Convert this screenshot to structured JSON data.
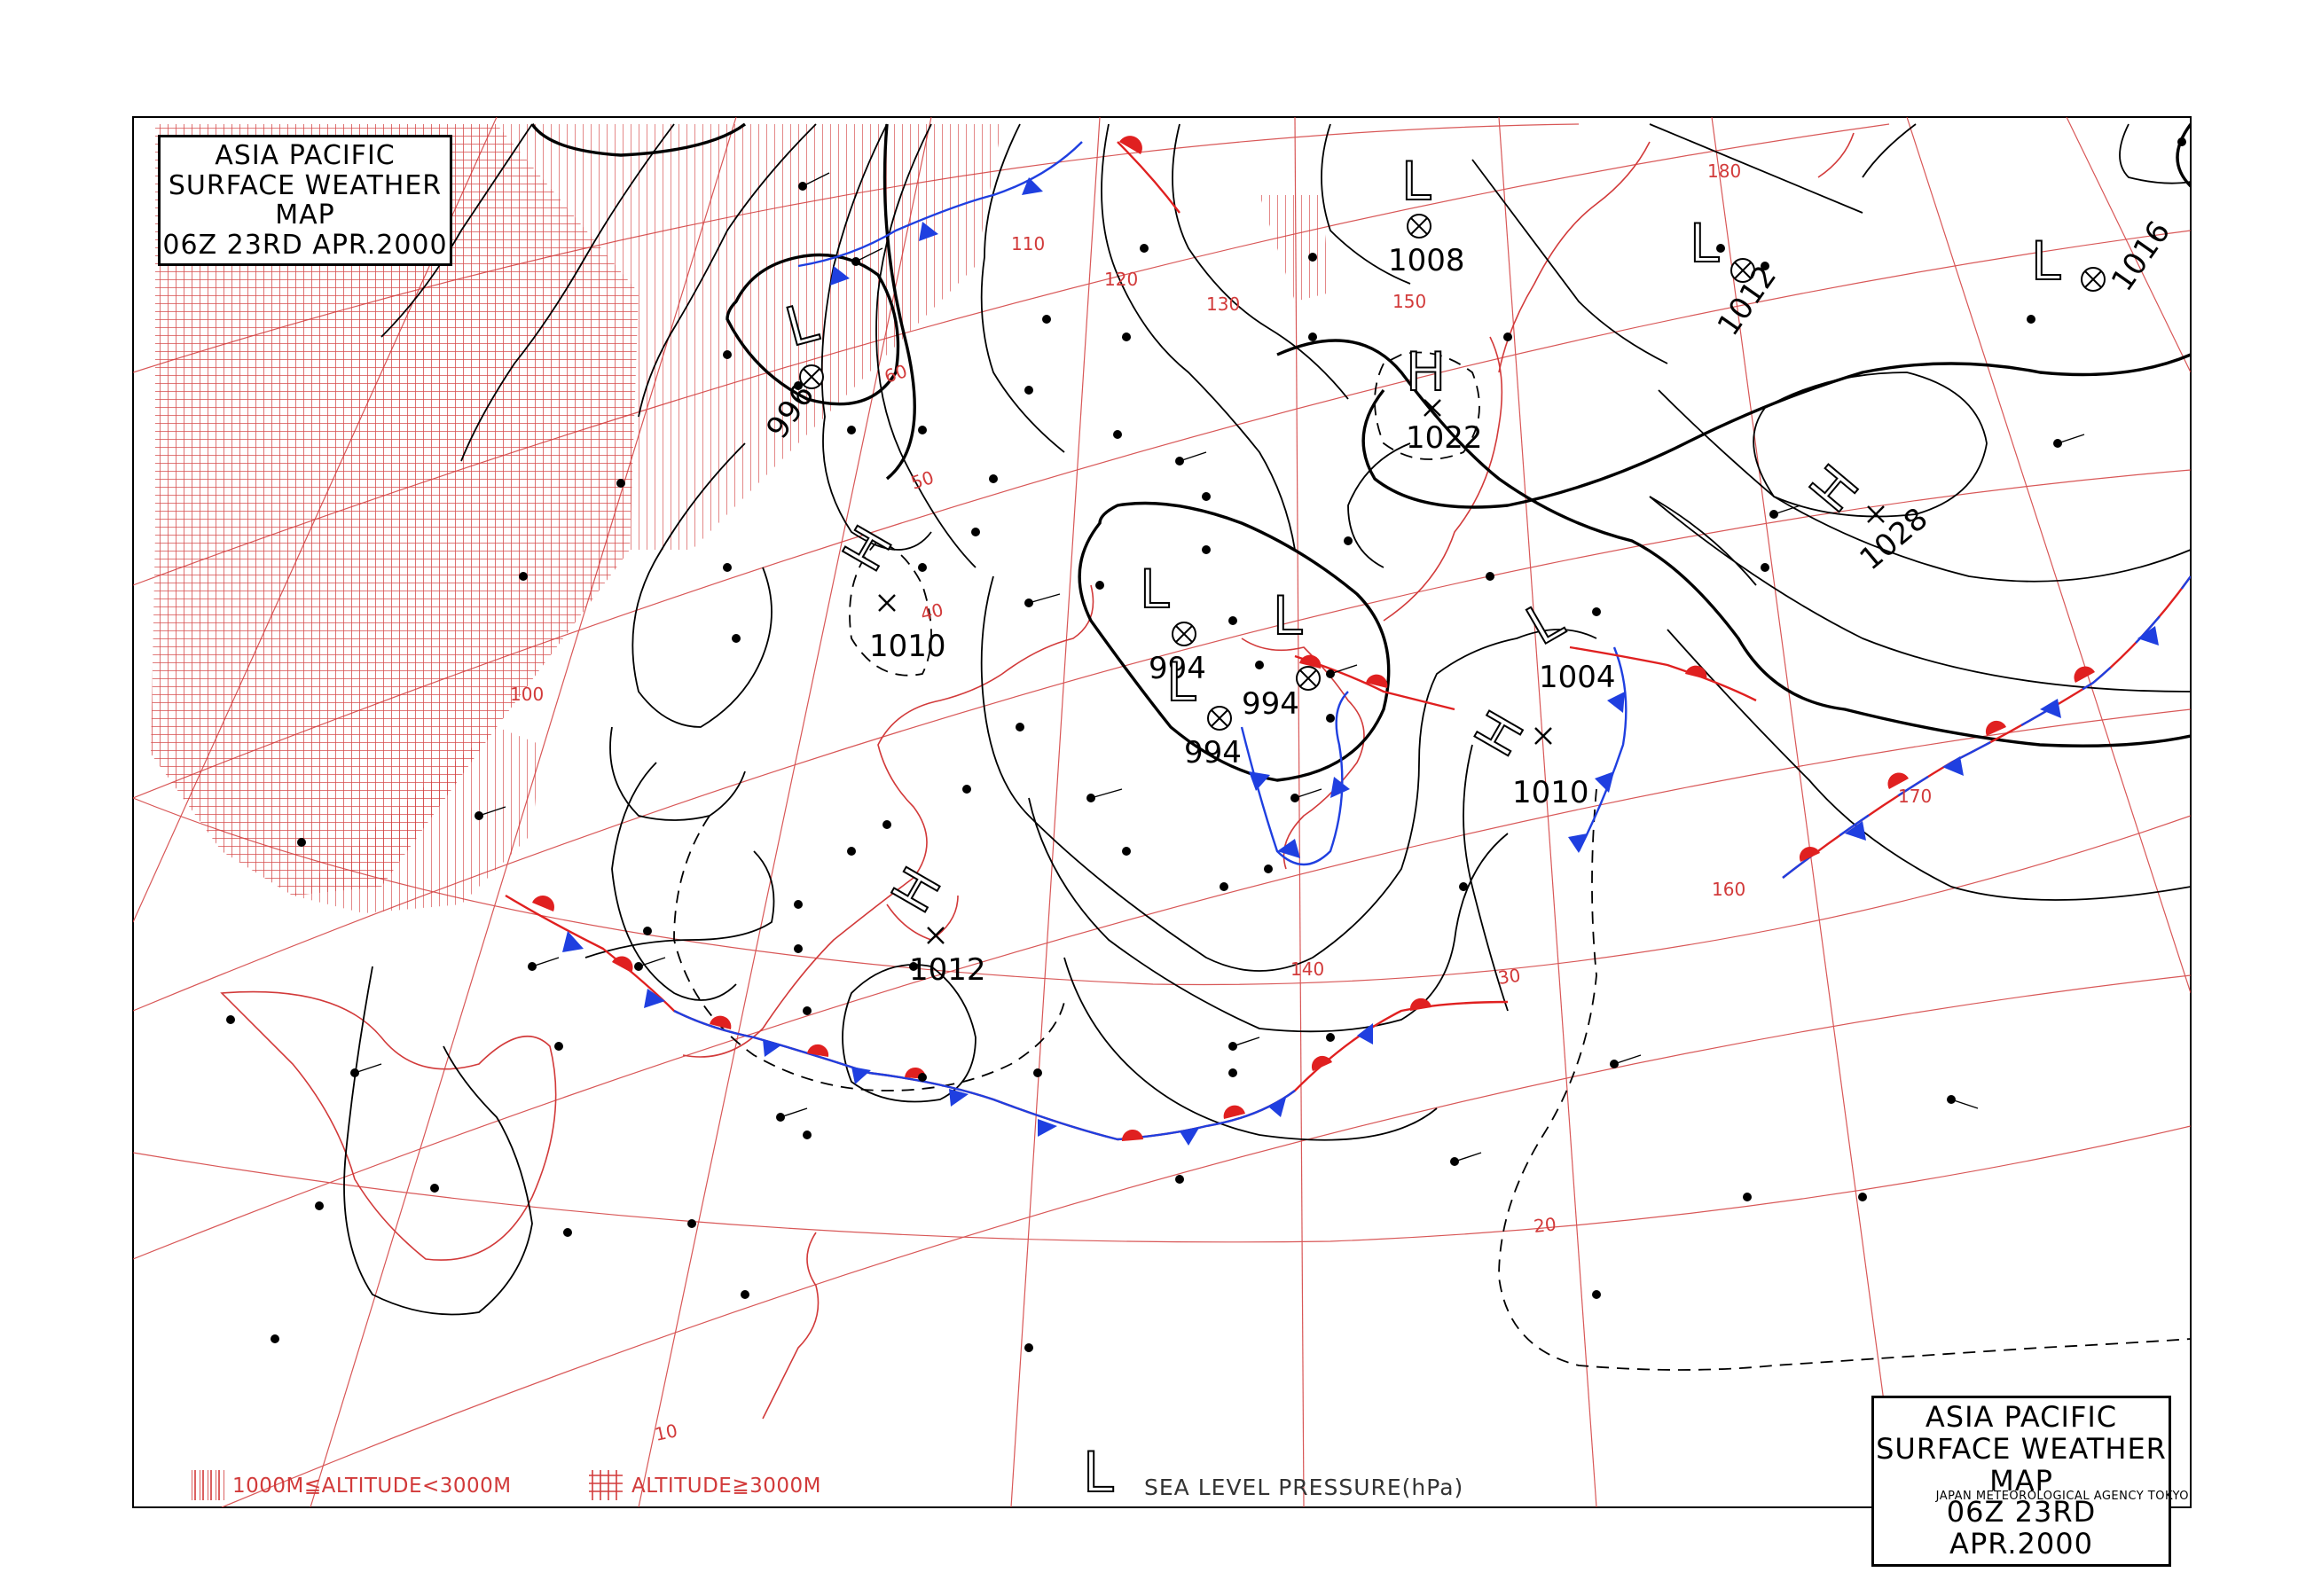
{
  "title_box_top_left": [
    "ASIA PACIFIC",
    "SURFACE WEATHER MAP",
    "06Z 23RD APR.2000"
  ],
  "title_box_bottom_right": [
    "ASIA PACIFIC",
    "SURFACE WEATHER MAP",
    "06Z 23RD APR.2000"
  ],
  "agency": "JAPAN METEOROLOGICAL AGENCY TOKYO",
  "legend": {
    "hatch_light": "1000M≦ALTITUDE<3000M",
    "hatch_dense": "ALTITUDE≧3000M",
    "pressure_label": "SEA LEVEL PRESSURE(hPa)",
    "pressure_symbol": "L"
  },
  "colors": {
    "coast": "#d23a3a",
    "warm_front": "#e02020",
    "cold_front": "#1f3fe0",
    "isobar": "#000000",
    "grid": "#d23a3a"
  },
  "pressure_systems": [
    {
      "type": "L",
      "value": "996"
    },
    {
      "type": "L",
      "value": "1008"
    },
    {
      "type": "L",
      "value": "1012"
    },
    {
      "type": "L",
      "value": "1016"
    },
    {
      "type": "H",
      "value": "1022"
    },
    {
      "type": "H",
      "value": "1028"
    },
    {
      "type": "H",
      "value": "1010"
    },
    {
      "type": "L",
      "value": "994"
    },
    {
      "type": "L",
      "value": "994"
    },
    {
      "type": "L",
      "value": "994"
    },
    {
      "type": "L",
      "value": "1004"
    },
    {
      "type": "H",
      "value": "1010"
    },
    {
      "type": "H",
      "value": "1012"
    }
  ],
  "grid_labels": {
    "latitudes": [
      "60",
      "50",
      "40",
      "30",
      "20",
      "10"
    ],
    "longitudes": [
      "100",
      "110",
      "120",
      "130",
      "140",
      "150",
      "160",
      "170",
      "180"
    ]
  }
}
